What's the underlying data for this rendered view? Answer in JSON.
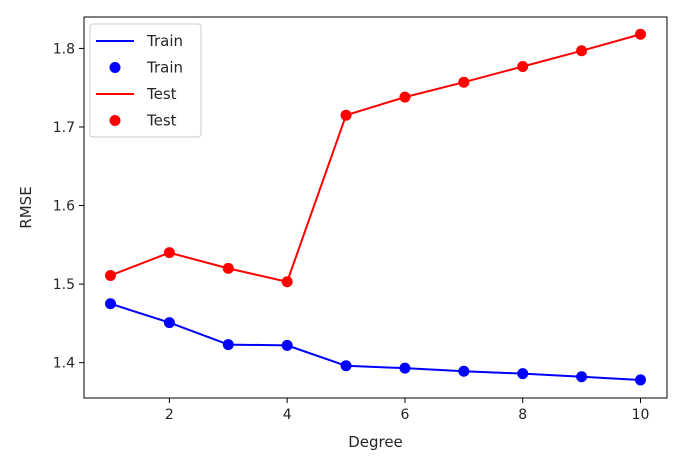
{
  "chart_data": {
    "type": "line",
    "title": "",
    "xlabel": "Degree",
    "ylabel": "RMSE",
    "xlim": [
      0.55,
      10.45
    ],
    "ylim": [
      1.355,
      1.84
    ],
    "x_ticks": [
      2,
      4,
      6,
      8,
      10
    ],
    "x_tick_labels": [
      "2",
      "4",
      "6",
      "8",
      "10"
    ],
    "y_ticks": [
      1.4,
      1.5,
      1.6,
      1.7,
      1.8
    ],
    "y_tick_labels": [
      "1.4",
      "1.5",
      "1.6",
      "1.7",
      "1.8"
    ],
    "grid": false,
    "legend_position": "upper-left",
    "x": [
      1,
      2,
      3,
      4,
      5,
      6,
      7,
      8,
      9,
      10
    ],
    "series": [
      {
        "name": "Train",
        "color": "#0000ff",
        "values": [
          1.475,
          1.451,
          1.423,
          1.422,
          1.396,
          1.393,
          1.389,
          1.386,
          1.382,
          1.378
        ]
      },
      {
        "name": "Test",
        "color": "#ff0000",
        "values": [
          1.511,
          1.54,
          1.52,
          1.503,
          1.715,
          1.738,
          1.757,
          1.777,
          1.797,
          1.818
        ]
      }
    ],
    "legend": [
      {
        "label": "Train",
        "marker": "line",
        "color": "#0000ff"
      },
      {
        "label": "Train",
        "marker": "dot",
        "color": "#0000ff"
      },
      {
        "label": "Test",
        "marker": "line",
        "color": "#ff0000"
      },
      {
        "label": "Test",
        "marker": "dot",
        "color": "#ff0000"
      }
    ]
  }
}
